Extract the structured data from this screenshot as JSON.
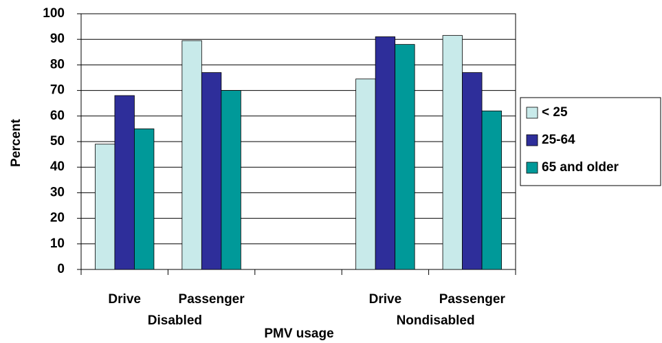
{
  "chart_data": {
    "type": "bar",
    "y_label": "Percent",
    "x_label": "PMV usage",
    "categories": [
      "Drive",
      "Passenger",
      null,
      "Drive",
      "Passenger"
    ],
    "group_labels": [
      "Disabled",
      "Nondisabled"
    ],
    "series": [
      {
        "name": "< 25",
        "color": "#c8eaea",
        "values": [
          49,
          89.5,
          null,
          74.5,
          91.5
        ]
      },
      {
        "name": "25-64",
        "color": "#2e2e9a",
        "values": [
          68,
          77,
          null,
          91,
          77
        ]
      },
      {
        "name": "65 and older",
        "color": "#009999",
        "values": [
          55,
          70,
          null,
          88,
          62
        ]
      }
    ],
    "ylim": [
      0,
      100
    ],
    "yticks": [
      0,
      10,
      20,
      30,
      40,
      50,
      60,
      70,
      80,
      90,
      100
    ],
    "grid": true,
    "legend": "right"
  }
}
